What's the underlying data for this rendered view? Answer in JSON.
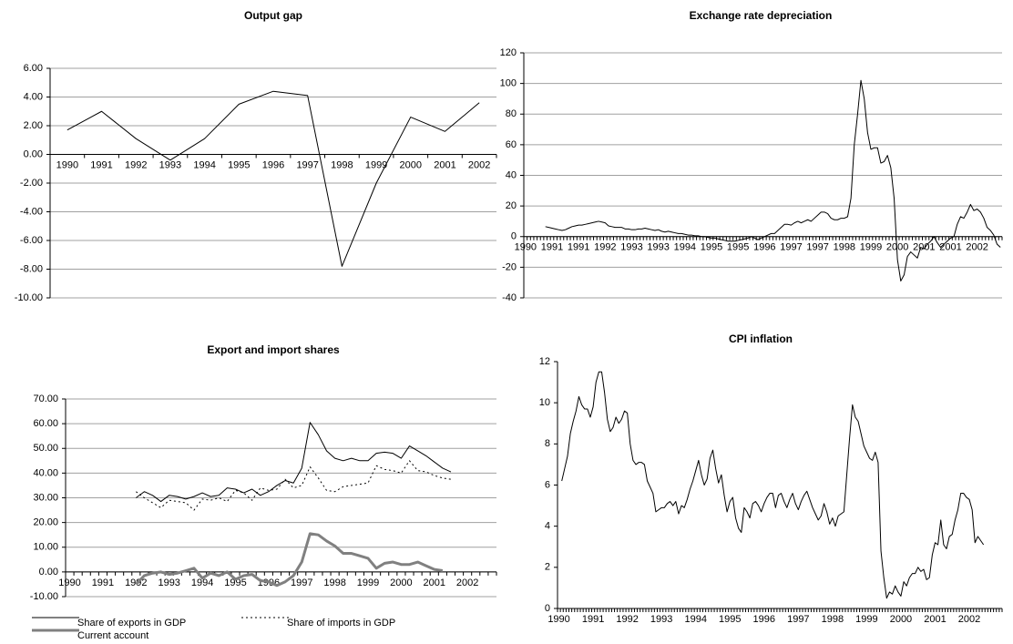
{
  "chart_data": [
    {
      "type": "line",
      "title": "Output gap",
      "grid": true,
      "color": "#000000",
      "categories": [
        "1990",
        "1991",
        "1992",
        "1993",
        "1994",
        "1995",
        "1996",
        "1997",
        "1998",
        "1999",
        "2000",
        "2001",
        "2002"
      ],
      "values": [
        1.7,
        3.0,
        1.1,
        -0.4,
        1.1,
        3.5,
        4.4,
        4.1,
        -7.8,
        -2.0,
        2.6,
        1.6,
        3.6
      ],
      "ylim": [
        -10,
        6
      ],
      "yticks": [
        {
          "value": -10,
          "label": "-10.00"
        },
        {
          "value": -8,
          "label": "-8.00"
        },
        {
          "value": -6,
          "label": "-6.00"
        },
        {
          "value": -4,
          "label": "-4.00"
        },
        {
          "value": -2,
          "label": "-2.00"
        },
        {
          "value": 0,
          "label": "0.00"
        },
        {
          "value": 2,
          "label": "2.00"
        },
        {
          "value": 4,
          "label": "4.00"
        },
        {
          "value": 6,
          "label": "6.00"
        }
      ]
    },
    {
      "type": "line",
      "title": "Exchange rate depreciation",
      "grid": true,
      "color": "#000000",
      "categories": [
        "1990",
        null,
        null,
        null,
        null,
        null,
        null,
        null,
        "1991",
        null,
        null,
        null,
        null,
        null,
        null,
        null,
        "1991",
        null,
        null,
        null,
        null,
        null,
        null,
        null,
        "1992",
        null,
        null,
        null,
        null,
        null,
        null,
        null,
        "1993",
        null,
        null,
        null,
        null,
        null,
        null,
        null,
        "1993",
        null,
        null,
        null,
        null,
        null,
        null,
        null,
        "1994",
        null,
        null,
        null,
        null,
        null,
        null,
        null,
        "1995",
        null,
        null,
        null,
        null,
        null,
        null,
        null,
        "1995",
        null,
        null,
        null,
        null,
        null,
        null,
        null,
        "1996",
        null,
        null,
        null,
        null,
        null,
        null,
        null,
        "1997",
        null,
        null,
        null,
        null,
        null,
        null,
        null,
        "1997",
        null,
        null,
        null,
        null,
        null,
        null,
        null,
        "1998",
        null,
        null,
        null,
        null,
        null,
        null,
        null,
        "1999",
        null,
        null,
        null,
        null,
        null,
        null,
        null,
        "2000",
        null,
        null,
        null,
        null,
        null,
        null,
        null,
        "2001",
        null,
        null,
        null,
        null,
        null,
        null,
        null,
        "2001",
        null,
        null,
        null,
        null,
        null,
        null,
        null,
        "2002",
        null,
        null,
        null,
        null,
        null,
        null,
        null
      ],
      "values": [
        null,
        null,
        null,
        null,
        null,
        null,
        6.5,
        6,
        5.5,
        5,
        4.5,
        4,
        4.5,
        5.5,
        6.5,
        7,
        7.5,
        7.5,
        8,
        8.5,
        9,
        9.5,
        10,
        9.5,
        9,
        7,
        6.5,
        6,
        6,
        6,
        5,
        5,
        4.5,
        4.5,
        5,
        5,
        5.5,
        5,
        4.5,
        4,
        4.5,
        3.5,
        3,
        3.5,
        3,
        2.5,
        2,
        2,
        1.5,
        1,
        1,
        0.5,
        0.5,
        0,
        0,
        -0.5,
        -1,
        -1,
        -1.5,
        -2,
        -2.5,
        -3,
        -3,
        -3,
        -2.5,
        -2,
        -1.5,
        -1,
        0,
        -1,
        -2,
        -1,
        0,
        1,
        2,
        2,
        4,
        6,
        8,
        8,
        7.5,
        9,
        10,
        9,
        10,
        11,
        10,
        12,
        14,
        16,
        16,
        15,
        12,
        11,
        11,
        12,
        12,
        13,
        25,
        60,
        80,
        102,
        90,
        68,
        57,
        58,
        58,
        48,
        49,
        53,
        45,
        25,
        -15,
        -29,
        -25,
        -13,
        -10,
        -12,
        -14,
        -7,
        -8,
        -5,
        -3,
        0,
        -4,
        -7,
        -5,
        -3,
        -1,
        0,
        8,
        13,
        12,
        16,
        21,
        17,
        18,
        16,
        12,
        6,
        4,
        1,
        -5,
        -7
      ],
      "ylim": [
        -40,
        120
      ],
      "yticks": [
        -40,
        -20,
        0,
        20,
        40,
        60,
        80,
        100,
        120
      ]
    },
    {
      "type": "line",
      "title": "Export and import shares",
      "grid": true,
      "legend": "bottom",
      "categories": [
        "1990",
        null,
        null,
        null,
        "1991",
        null,
        null,
        null,
        "1992",
        null,
        null,
        null,
        "1993",
        null,
        null,
        null,
        "1994",
        null,
        null,
        null,
        "1995",
        null,
        null,
        null,
        "1996",
        null,
        null,
        null,
        "1997",
        null,
        null,
        null,
        "1998",
        null,
        null,
        null,
        "1999",
        null,
        null,
        null,
        "2000",
        null,
        null,
        null,
        "2001",
        null,
        null,
        null,
        "2002",
        null,
        null,
        null
      ],
      "series": [
        {
          "name": "Share of exports in GDP",
          "color": "#000000",
          "style": "solid",
          "width": 1,
          "values": [
            null,
            null,
            null,
            null,
            null,
            null,
            null,
            null,
            30,
            32.5,
            31,
            28.5,
            31,
            30.5,
            29.5,
            30.5,
            32,
            30.5,
            31,
            34,
            33.5,
            32,
            33.5,
            31,
            32.5,
            35,
            37,
            36,
            42,
            60.5,
            55.5,
            49,
            46,
            45,
            46,
            45,
            45,
            48,
            48.5,
            48,
            46,
            51,
            49,
            47,
            44.5,
            42,
            40.5,
            null,
            null,
            null,
            null,
            null
          ]
        },
        {
          "name": "Share of imports in GDP",
          "color": "#000000",
          "style": "dotted",
          "width": 1,
          "values": [
            null,
            null,
            null,
            null,
            null,
            null,
            null,
            null,
            32.5,
            30,
            28,
            26,
            29,
            28.5,
            28,
            25,
            29.5,
            29,
            30,
            28.5,
            33,
            32,
            29,
            34,
            33,
            33.5,
            37.5,
            34,
            35,
            42.5,
            38,
            33,
            32.5,
            34.5,
            35,
            35.5,
            36,
            43,
            41.5,
            41,
            40,
            45,
            41,
            40.5,
            39,
            38,
            37.5,
            null,
            null,
            null,
            null,
            null
          ]
        },
        {
          "name": "Current account",
          "color": "#808080",
          "style": "solid",
          "width": 3,
          "values": [
            null,
            null,
            null,
            null,
            null,
            null,
            null,
            null,
            -5,
            -1.5,
            -0.5,
            0,
            -1,
            -0.5,
            0.5,
            1.5,
            -2.5,
            -0.5,
            -1.5,
            0,
            -3,
            -1.5,
            -1,
            -3.5,
            -4,
            -5.5,
            -4,
            -1.5,
            4,
            15.5,
            15,
            12.5,
            10.5,
            7.5,
            7.5,
            6.5,
            5.5,
            1.5,
            3.5,
            4,
            3,
            3,
            4,
            2.5,
            1,
            0.5,
            null,
            null,
            null,
            null,
            null,
            null
          ]
        }
      ],
      "ylim": [
        -10,
        70
      ],
      "yticks": [
        {
          "value": -10,
          "label": "-10.00"
        },
        {
          "value": 0,
          "label": "0.00"
        },
        {
          "value": 10,
          "label": "10.00"
        },
        {
          "value": 20,
          "label": "20.00"
        },
        {
          "value": 30,
          "label": "30.00"
        },
        {
          "value": 40,
          "label": "40.00"
        },
        {
          "value": 50,
          "label": "50.00"
        },
        {
          "value": 60,
          "label": "60.00"
        },
        {
          "value": 70,
          "label": "70.00"
        }
      ]
    },
    {
      "type": "line",
      "title": "CPI inflation",
      "grid": false,
      "color": "#000000",
      "categories": [
        "1990",
        null,
        null,
        null,
        null,
        null,
        null,
        null,
        null,
        null,
        null,
        null,
        "1991",
        null,
        null,
        null,
        null,
        null,
        null,
        null,
        null,
        null,
        null,
        null,
        "1992",
        null,
        null,
        null,
        null,
        null,
        null,
        null,
        null,
        null,
        null,
        null,
        "1993",
        null,
        null,
        null,
        null,
        null,
        null,
        null,
        null,
        null,
        null,
        null,
        "1994",
        null,
        null,
        null,
        null,
        null,
        null,
        null,
        null,
        null,
        null,
        null,
        "1995",
        null,
        null,
        null,
        null,
        null,
        null,
        null,
        null,
        null,
        null,
        null,
        "1996",
        null,
        null,
        null,
        null,
        null,
        null,
        null,
        null,
        null,
        null,
        null,
        "1997",
        null,
        null,
        null,
        null,
        null,
        null,
        null,
        null,
        null,
        null,
        null,
        "1998",
        null,
        null,
        null,
        null,
        null,
        null,
        null,
        null,
        null,
        null,
        null,
        "1999",
        null,
        null,
        null,
        null,
        null,
        null,
        null,
        null,
        null,
        null,
        null,
        "2000",
        null,
        null,
        null,
        null,
        null,
        null,
        null,
        null,
        null,
        null,
        null,
        "2001",
        null,
        null,
        null,
        null,
        null,
        null,
        null,
        null,
        null,
        null,
        null,
        "2002",
        null,
        null,
        null,
        null,
        null,
        null,
        null,
        null,
        null,
        null,
        null
      ],
      "values": [
        null,
        6.2,
        6.8,
        7.4,
        8.5,
        9.1,
        9.6,
        10.3,
        9.9,
        9.7,
        9.7,
        9.3,
        9.8,
        11,
        11.5,
        11.5,
        10.5,
        9.2,
        8.6,
        8.8,
        9.3,
        9,
        9.2,
        9.6,
        9.5,
        8,
        7.2,
        7,
        7.1,
        7.1,
        7,
        6.2,
        5.9,
        5.6,
        4.7,
        4.8,
        4.9,
        4.9,
        5.1,
        5.2,
        5,
        5.2,
        4.6,
        5,
        4.9,
        5.3,
        5.8,
        6.2,
        6.7,
        7.2,
        6.5,
        6,
        6.3,
        7.3,
        7.7,
        6.8,
        6.1,
        6.5,
        5.5,
        4.7,
        5.2,
        5.4,
        4.4,
        3.9,
        3.7,
        4.9,
        4.7,
        4.4,
        5.1,
        5.2,
        5,
        4.7,
        5.1,
        5.4,
        5.6,
        5.6,
        4.9,
        5.5,
        5.6,
        5.2,
        4.9,
        5.3,
        5.6,
        5.1,
        4.8,
        5.2,
        5.5,
        5.7,
        5.3,
        4.9,
        4.6,
        4.3,
        4.5,
        5.1,
        4.7,
        4.1,
        4.4,
        4,
        4.5,
        4.6,
        4.7,
        6.5,
        8.3,
        9.9,
        9.3,
        9.1,
        8.5,
        7.9,
        7.6,
        7.3,
        7.2,
        7.6,
        7.1,
        2.8,
        1.5,
        0.5,
        0.8,
        0.7,
        1.1,
        0.8,
        0.6,
        1.3,
        1.1,
        1.5,
        1.7,
        1.7,
        2,
        1.8,
        1.9,
        1.4,
        1.5,
        2.6,
        3.2,
        3.1,
        4.3,
        3.1,
        2.9,
        3.5,
        3.6,
        4.3,
        4.8,
        5.6,
        5.6,
        5.4,
        5.3,
        4.8,
        3.2,
        3.5,
        3.3,
        3.1,
        null,
        null,
        null,
        null,
        null,
        null
      ],
      "ylim": [
        0,
        12
      ],
      "yticks": [
        0,
        2,
        4,
        6,
        8,
        10,
        12
      ]
    }
  ]
}
